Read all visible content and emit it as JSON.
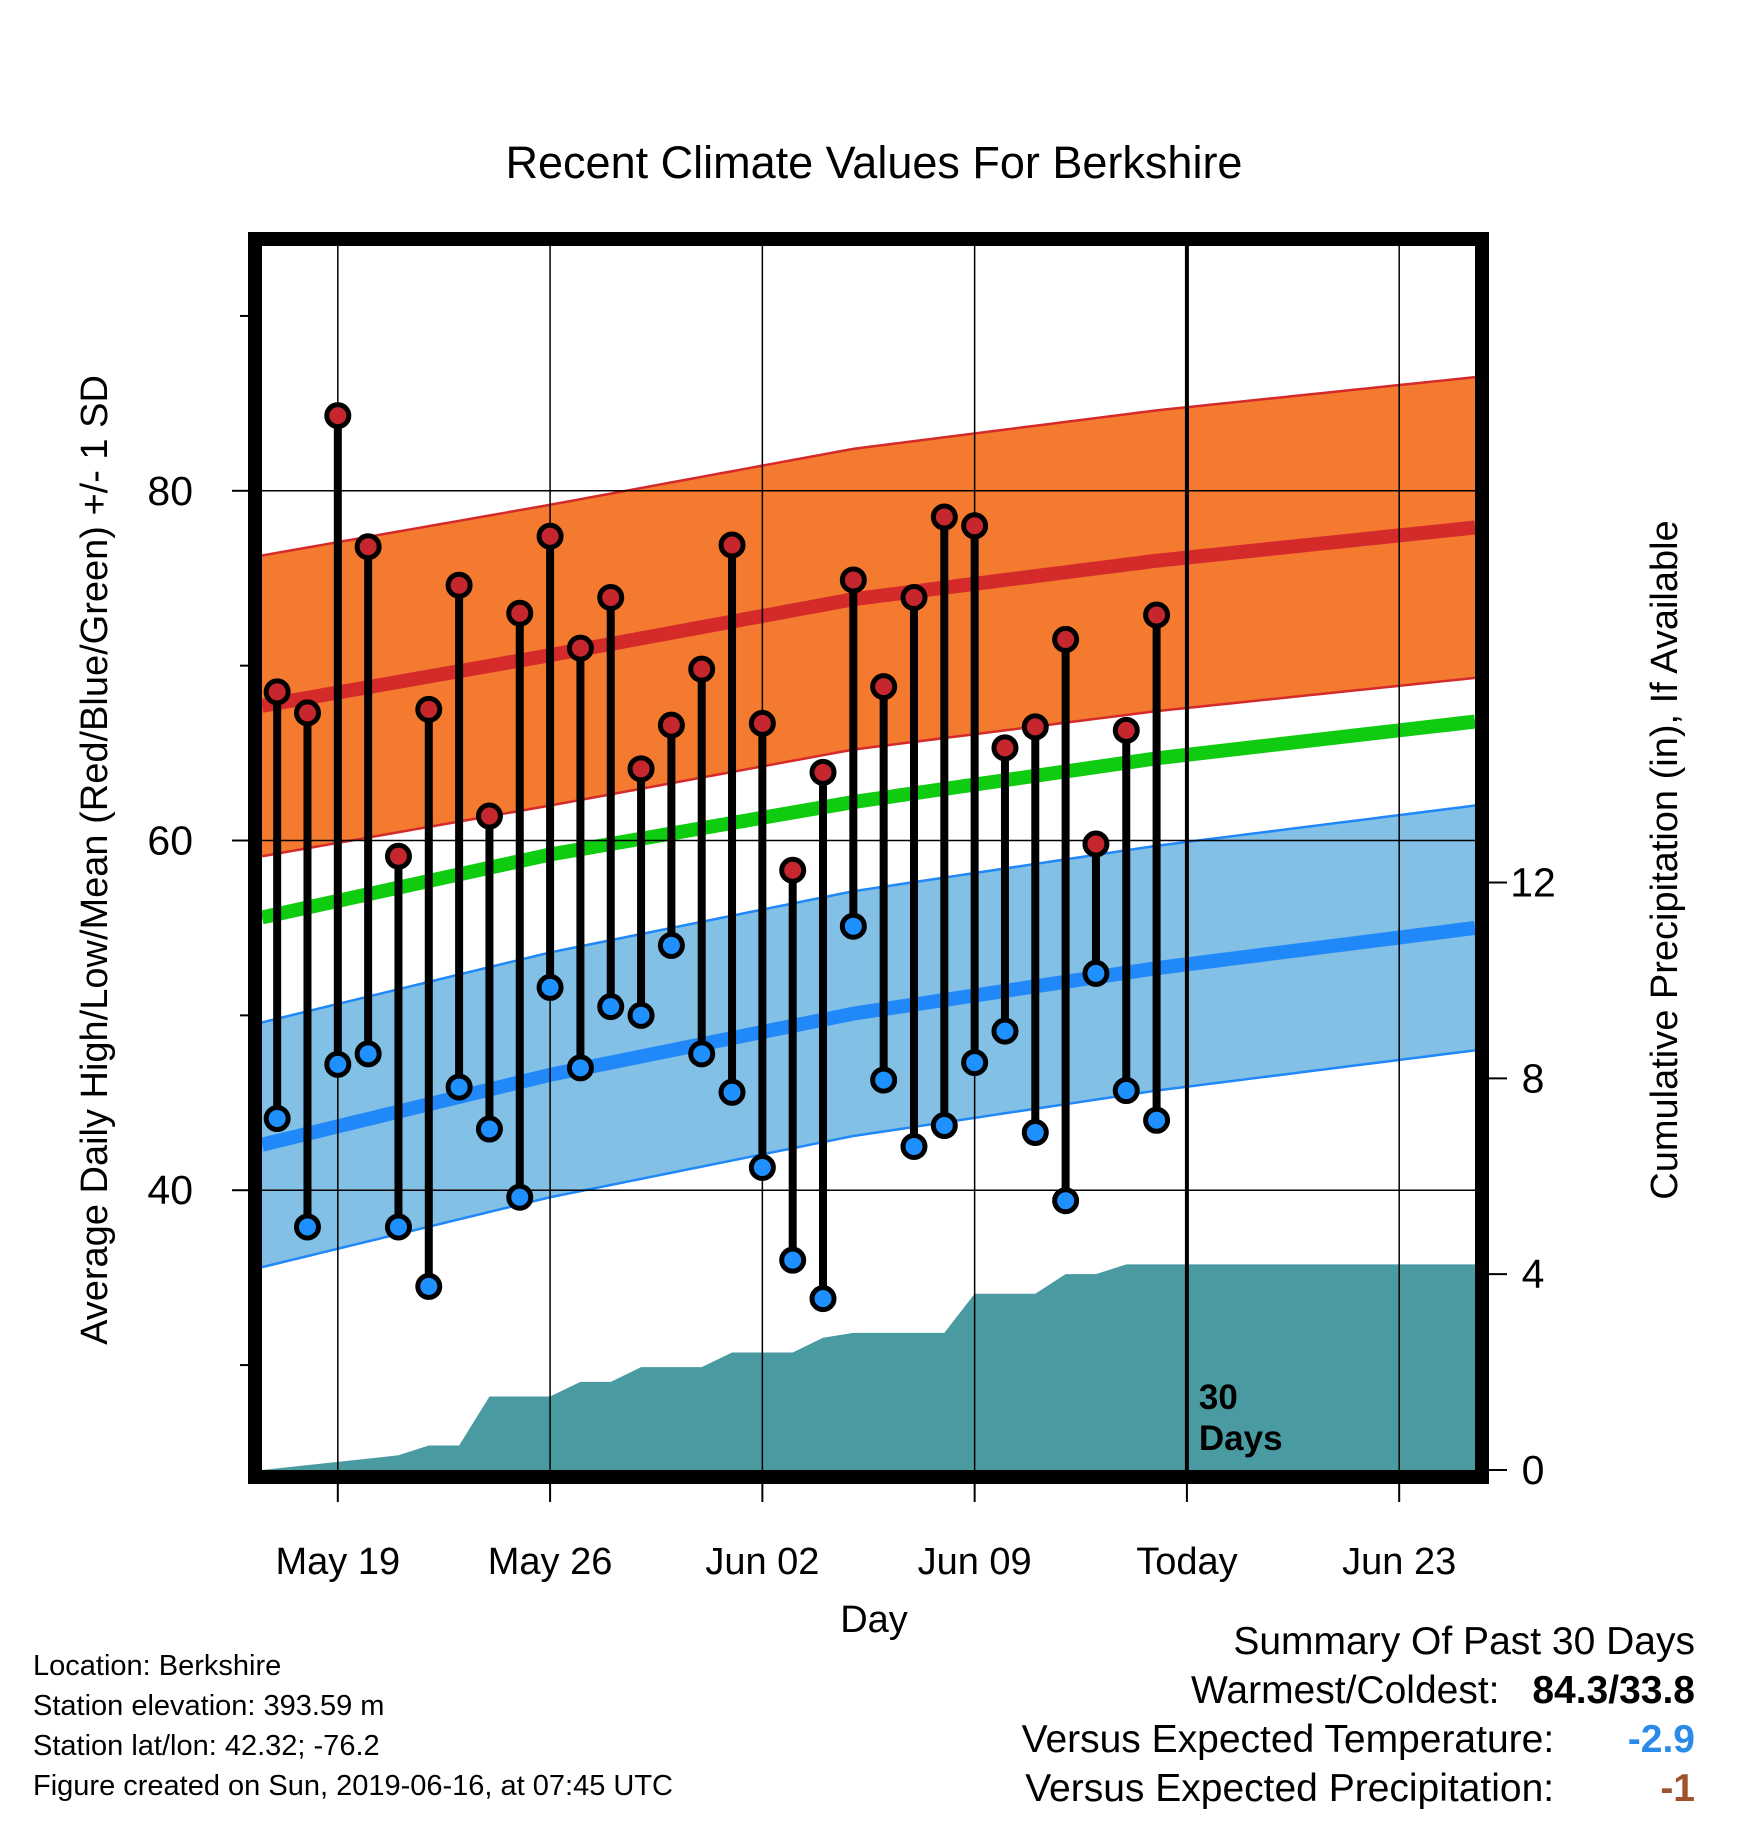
{
  "chart_data": {
    "type": "line",
    "title": "Recent Climate Values For Berkshire",
    "xlabel": "Day",
    "ylabel_left": "Average Daily High/Low/Mean (Red/Blue/Green) +/- 1 SD",
    "ylabel_right": "Cumulative Precipitation (in), If Available",
    "x_ticks": [
      "May 19",
      "May 26",
      "Jun 02",
      "Jun 09",
      "Today",
      "Jun 23"
    ],
    "x_tick_days": [
      2,
      9,
      16,
      23,
      30,
      37
    ],
    "x_range": [
      -0.5,
      39.5
    ],
    "today_day": 30,
    "today_label": [
      "30",
      "Days"
    ],
    "ylim_left": [
      24,
      94
    ],
    "y_ticks_left": [
      40,
      60,
      80
    ],
    "ylim_right": [
      0,
      25
    ],
    "y_ticks_right": [
      0,
      4,
      8,
      12
    ],
    "grid": true,
    "days": [
      0,
      1,
      2,
      3,
      4,
      5,
      6,
      7,
      8,
      9,
      10,
      11,
      12,
      13,
      14,
      15,
      16,
      17,
      18,
      19,
      20,
      21,
      22,
      23,
      24,
      25,
      26,
      27,
      28,
      29
    ],
    "series": [
      {
        "name": "High",
        "color": "#c6262e",
        "values": [
          68.5,
          67.3,
          84.3,
          76.8,
          59.1,
          67.5,
          74.6,
          61.4,
          73.0,
          77.4,
          71.0,
          73.9,
          64.1,
          66.6,
          69.8,
          76.9,
          66.7,
          58.3,
          63.9,
          74.9,
          68.8,
          73.9,
          78.5,
          78.0,
          65.3,
          66.5,
          71.5,
          59.8,
          66.3,
          72.9
        ]
      },
      {
        "name": "Low",
        "color": "#1e90ff",
        "values": [
          44.1,
          37.9,
          47.2,
          47.8,
          37.9,
          34.5,
          45.9,
          43.5,
          39.6,
          51.6,
          47.0,
          50.5,
          50.0,
          54.0,
          47.8,
          45.6,
          41.3,
          36.0,
          33.8,
          55.1,
          46.3,
          42.5,
          43.7,
          47.3,
          49.1,
          43.3,
          39.4,
          52.4,
          45.7,
          44.0
        ]
      }
    ],
    "normals": {
      "days": [
        -0.5,
        9,
        19,
        29,
        39.5
      ],
      "high_mean": [
        67.7,
        70.6,
        73.8,
        76.0,
        77.9
      ],
      "high_sd": 8.6,
      "low_mean": [
        42.6,
        46.6,
        50.1,
        52.7,
        55.0
      ],
      "low_sd": 7.0,
      "avg_mean": [
        55.6,
        59.2,
        62.2,
        64.7,
        66.8
      ],
      "high_band_color": "#f47a30",
      "high_line_color": "#d42a2a",
      "low_band_color": "#82c0e6",
      "low_line_color": "#2088f8",
      "avg_line_color": "#10cc10"
    },
    "precipitation": {
      "color": "#4a9aa2",
      "days": [
        -0.5,
        4,
        5,
        6,
        7,
        8,
        9,
        10,
        11,
        12,
        13,
        14,
        15,
        16,
        17,
        18,
        19,
        20,
        21,
        22,
        23,
        24,
        25,
        26,
        27,
        28,
        29,
        39.5
      ],
      "values": [
        0,
        0.3,
        0.5,
        0.5,
        1.5,
        1.5,
        1.5,
        1.8,
        1.8,
        2.1,
        2.1,
        2.1,
        2.4,
        2.4,
        2.4,
        2.7,
        2.8,
        2.8,
        2.8,
        2.8,
        3.6,
        3.6,
        3.6,
        4.0,
        4.0,
        4.2,
        4.2,
        4.2
      ]
    }
  },
  "info": [
    "Location: Berkshire",
    "Station elevation: 393.59 m",
    "Station lat/lon: 42.32; -76.2",
    "Figure created on Sun, 2019-06-16, at 07:45 UTC"
  ],
  "summary": {
    "heading": "Summary Of Past 30 Days",
    "warmest_label": "Warmest/Coldest:",
    "warmest_value": "84.3/33.8",
    "temp_label": "Versus Expected Temperature:",
    "temp_value": "-2.9",
    "temp_color": "#2a8ae8",
    "precip_label": "Versus Expected Precipitation:",
    "precip_value": "-1",
    "precip_color": "#a0522d"
  }
}
